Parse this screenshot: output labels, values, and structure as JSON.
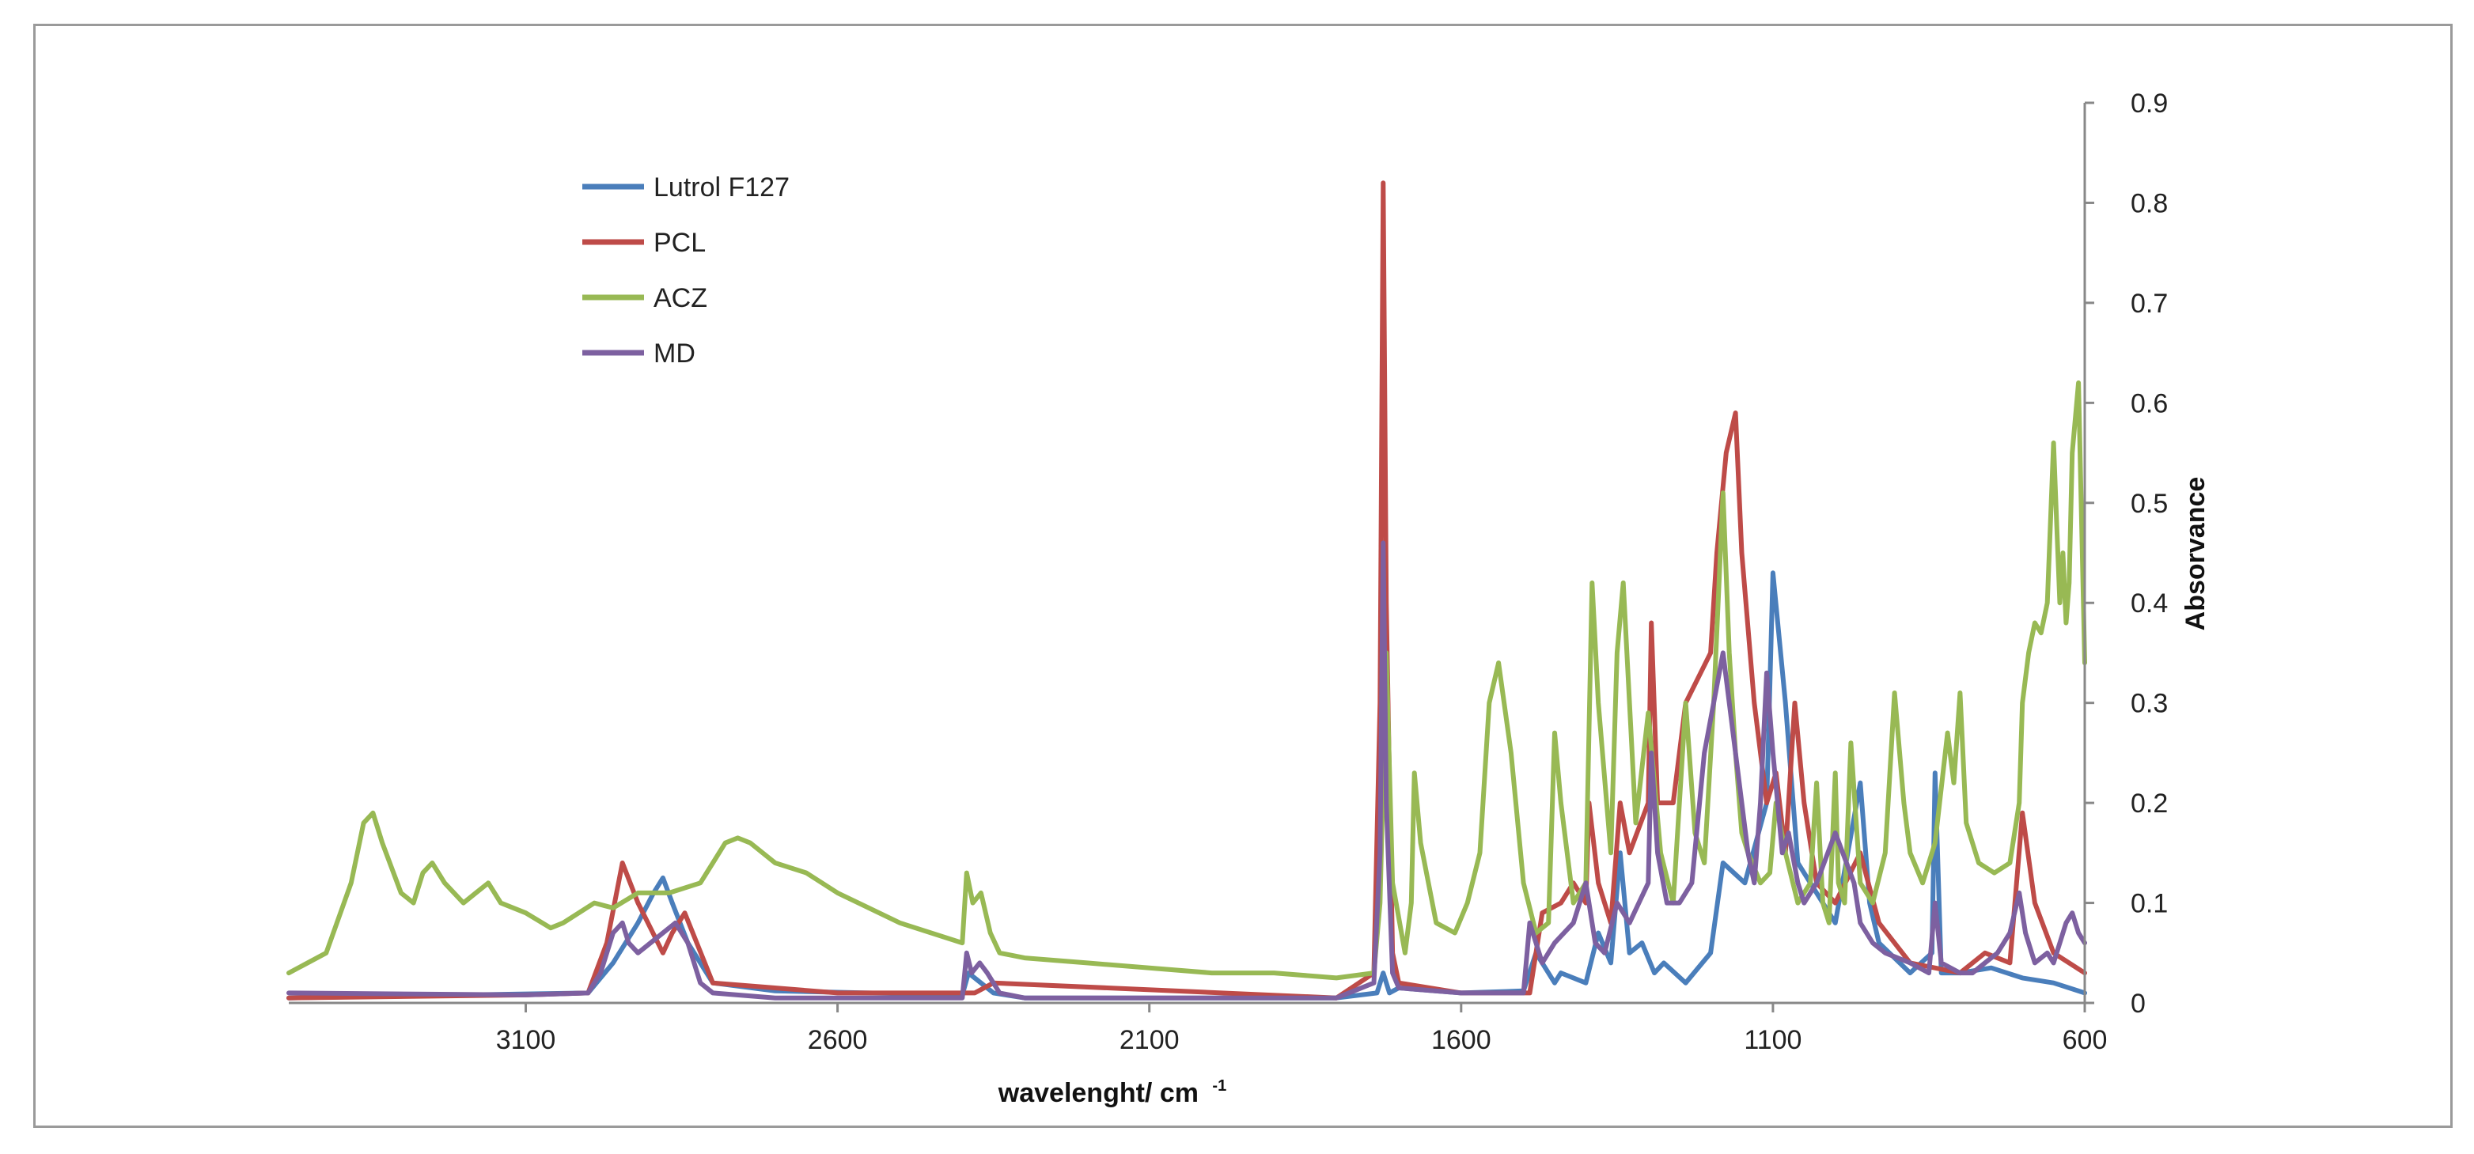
{
  "chart_data": {
    "type": "line",
    "title": "",
    "xlabel": "wavelenght/ cm",
    "xlabel_superscript": "-1",
    "ylabel": "Absorvance",
    "xlim": [
      3480,
      600
    ],
    "ylim": [
      0,
      0.9
    ],
    "x_reversed": true,
    "y_axis_side": "right",
    "legend_position": "top-left",
    "grid": false,
    "x_ticks": [
      "3100",
      "2600",
      "2100",
      "1600",
      "1100",
      "600"
    ],
    "x_tick_values": [
      3100,
      2600,
      2100,
      1600,
      1100,
      600
    ],
    "y_ticks": [
      "0",
      "0.1",
      "0.2",
      "0.3",
      "0.4",
      "0.5",
      "0.6",
      "0.7",
      "0.8",
      "0.9"
    ],
    "y_tick_values": [
      0,
      0.1,
      0.2,
      0.3,
      0.4,
      0.5,
      0.6,
      0.7,
      0.8,
      0.9
    ],
    "series": [
      {
        "name": "Lutrol F127",
        "color": "#4a7ebb",
        "x": [
          3480,
          3200,
          3000,
          2960,
          2920,
          2895,
          2880,
          2865,
          2840,
          2800,
          2700,
          2400,
          2390,
          2350,
          2300,
          1800,
          1735,
          1725,
          1715,
          1700,
          1600,
          1500,
          1480,
          1450,
          1440,
          1400,
          1380,
          1360,
          1345,
          1330,
          1310,
          1290,
          1275,
          1240,
          1200,
          1180,
          1145,
          1110,
          1100,
          1080,
          1060,
          1040,
          1000,
          960,
          945,
          930,
          880,
          845,
          840,
          830,
          800,
          750,
          700,
          650,
          600
        ],
        "y": [
          0.005,
          0.008,
          0.01,
          0.04,
          0.08,
          0.11,
          0.125,
          0.1,
          0.06,
          0.02,
          0.012,
          0.008,
          0.03,
          0.01,
          0.005,
          0.005,
          0.01,
          0.03,
          0.01,
          0.015,
          0.01,
          0.012,
          0.05,
          0.02,
          0.03,
          0.02,
          0.07,
          0.04,
          0.15,
          0.05,
          0.06,
          0.03,
          0.04,
          0.02,
          0.05,
          0.14,
          0.12,
          0.2,
          0.43,
          0.3,
          0.14,
          0.12,
          0.08,
          0.22,
          0.1,
          0.06,
          0.03,
          0.05,
          0.23,
          0.03,
          0.03,
          0.035,
          0.025,
          0.02,
          0.01
        ]
      },
      {
        "name": "PCL",
        "color": "#be4b48",
        "x": [
          3480,
          3100,
          3000,
          2970,
          2945,
          2920,
          2880,
          2865,
          2845,
          2800,
          2600,
          2380,
          2350,
          1800,
          1740,
          1730,
          1725,
          1720,
          1710,
          1700,
          1600,
          1490,
          1470,
          1440,
          1420,
          1400,
          1395,
          1380,
          1360,
          1345,
          1330,
          1300,
          1295,
          1285,
          1260,
          1240,
          1200,
          1190,
          1175,
          1160,
          1150,
          1130,
          1110,
          1095,
          1080,
          1065,
          1050,
          1030,
          1000,
          960,
          930,
          880,
          800,
          760,
          720,
          700,
          680,
          650,
          600
        ],
        "y": [
          0.005,
          0.008,
          0.01,
          0.06,
          0.14,
          0.1,
          0.05,
          0.07,
          0.09,
          0.02,
          0.01,
          0.01,
          0.02,
          0.005,
          0.03,
          0.3,
          0.82,
          0.4,
          0.05,
          0.02,
          0.01,
          0.01,
          0.09,
          0.1,
          0.12,
          0.1,
          0.2,
          0.12,
          0.08,
          0.2,
          0.15,
          0.2,
          0.38,
          0.2,
          0.2,
          0.3,
          0.35,
          0.45,
          0.55,
          0.59,
          0.45,
          0.3,
          0.2,
          0.23,
          0.15,
          0.3,
          0.2,
          0.12,
          0.1,
          0.15,
          0.08,
          0.04,
          0.03,
          0.05,
          0.04,
          0.19,
          0.1,
          0.05,
          0.03
        ]
      },
      {
        "name": "ACZ",
        "color": "#98b954",
        "x": [
          3480,
          3420,
          3380,
          3360,
          3345,
          3330,
          3300,
          3280,
          3265,
          3250,
          3230,
          3200,
          3180,
          3160,
          3140,
          3100,
          3060,
          3040,
          2990,
          2960,
          2920,
          2870,
          2820,
          2800,
          2780,
          2760,
          2740,
          2720,
          2700,
          2650,
          2600,
          2500,
          2400,
          2393,
          2383,
          2370,
          2355,
          2340,
          2300,
          2200,
          2100,
          2000,
          1900,
          1800,
          1740,
          1730,
          1720,
          1710,
          1690,
          1680,
          1675,
          1665,
          1640,
          1610,
          1590,
          1570,
          1555,
          1540,
          1520,
          1500,
          1480,
          1460,
          1450,
          1440,
          1420,
          1400,
          1390,
          1380,
          1360,
          1350,
          1340,
          1330,
          1320,
          1300,
          1280,
          1260,
          1250,
          1240,
          1225,
          1210,
          1195,
          1180,
          1170,
          1160,
          1150,
          1140,
          1120,
          1105,
          1095,
          1080,
          1060,
          1040,
          1030,
          1020,
          1010,
          1000,
          995,
          985,
          975,
          960,
          940,
          920,
          905,
          890,
          880,
          860,
          840,
          820,
          810,
          800,
          790,
          770,
          745,
          720,
          705,
          700,
          690,
          680,
          670,
          660,
          650,
          645,
          640,
          635,
          630,
          625,
          620,
          610,
          600
        ],
        "y": [
          0.03,
          0.05,
          0.12,
          0.18,
          0.19,
          0.16,
          0.11,
          0.1,
          0.13,
          0.14,
          0.12,
          0.1,
          0.11,
          0.12,
          0.1,
          0.09,
          0.075,
          0.08,
          0.1,
          0.095,
          0.11,
          0.11,
          0.12,
          0.14,
          0.16,
          0.165,
          0.16,
          0.15,
          0.14,
          0.13,
          0.11,
          0.08,
          0.06,
          0.13,
          0.1,
          0.11,
          0.07,
          0.05,
          0.045,
          0.04,
          0.035,
          0.03,
          0.03,
          0.025,
          0.03,
          0.1,
          0.35,
          0.12,
          0.05,
          0.1,
          0.23,
          0.16,
          0.08,
          0.07,
          0.1,
          0.15,
          0.3,
          0.34,
          0.25,
          0.12,
          0.07,
          0.08,
          0.27,
          0.2,
          0.1,
          0.12,
          0.42,
          0.3,
          0.15,
          0.35,
          0.42,
          0.3,
          0.18,
          0.29,
          0.15,
          0.1,
          0.2,
          0.3,
          0.17,
          0.14,
          0.3,
          0.51,
          0.35,
          0.25,
          0.17,
          0.15,
          0.12,
          0.13,
          0.2,
          0.15,
          0.1,
          0.12,
          0.22,
          0.1,
          0.08,
          0.23,
          0.12,
          0.1,
          0.26,
          0.12,
          0.1,
          0.15,
          0.31,
          0.2,
          0.15,
          0.12,
          0.16,
          0.27,
          0.22,
          0.31,
          0.18,
          0.14,
          0.13,
          0.14,
          0.2,
          0.3,
          0.35,
          0.38,
          0.37,
          0.4,
          0.56,
          0.48,
          0.4,
          0.45,
          0.38,
          0.42,
          0.55,
          0.62,
          0.34
        ]
      },
      {
        "name": "MD",
        "color": "#7d60a0",
        "x": [
          3480,
          3100,
          3000,
          2980,
          2960,
          2945,
          2935,
          2920,
          2900,
          2880,
          2860,
          2840,
          2820,
          2800,
          2700,
          2400,
          2393,
          2385,
          2372,
          2360,
          2340,
          2300,
          1800,
          1740,
          1730,
          1725,
          1720,
          1710,
          1700,
          1600,
          1500,
          1490,
          1470,
          1450,
          1420,
          1400,
          1385,
          1370,
          1350,
          1330,
          1300,
          1295,
          1285,
          1270,
          1250,
          1230,
          1210,
          1180,
          1170,
          1160,
          1150,
          1140,
          1130,
          1120,
          1110,
          1100,
          1085,
          1075,
          1060,
          1050,
          1030,
          1000,
          970,
          960,
          940,
          920,
          880,
          850,
          840,
          830,
          800,
          780,
          760,
          740,
          720,
          705,
          695,
          680,
          660,
          650,
          640,
          630,
          620,
          610,
          600
        ],
        "y": [
          0.01,
          0.008,
          0.01,
          0.03,
          0.07,
          0.08,
          0.06,
          0.05,
          0.06,
          0.07,
          0.08,
          0.06,
          0.02,
          0.01,
          0.005,
          0.005,
          0.05,
          0.03,
          0.04,
          0.03,
          0.01,
          0.005,
          0.005,
          0.02,
          0.15,
          0.46,
          0.2,
          0.03,
          0.015,
          0.01,
          0.01,
          0.08,
          0.04,
          0.06,
          0.08,
          0.12,
          0.06,
          0.05,
          0.1,
          0.08,
          0.12,
          0.25,
          0.15,
          0.1,
          0.1,
          0.12,
          0.25,
          0.35,
          0.3,
          0.25,
          0.2,
          0.15,
          0.12,
          0.2,
          0.33,
          0.25,
          0.15,
          0.17,
          0.12,
          0.1,
          0.12,
          0.17,
          0.12,
          0.08,
          0.06,
          0.05,
          0.04,
          0.03,
          0.1,
          0.04,
          0.03,
          0.03,
          0.04,
          0.05,
          0.07,
          0.11,
          0.07,
          0.04,
          0.05,
          0.04,
          0.06,
          0.08,
          0.09,
          0.07,
          0.06
        ]
      }
    ]
  }
}
